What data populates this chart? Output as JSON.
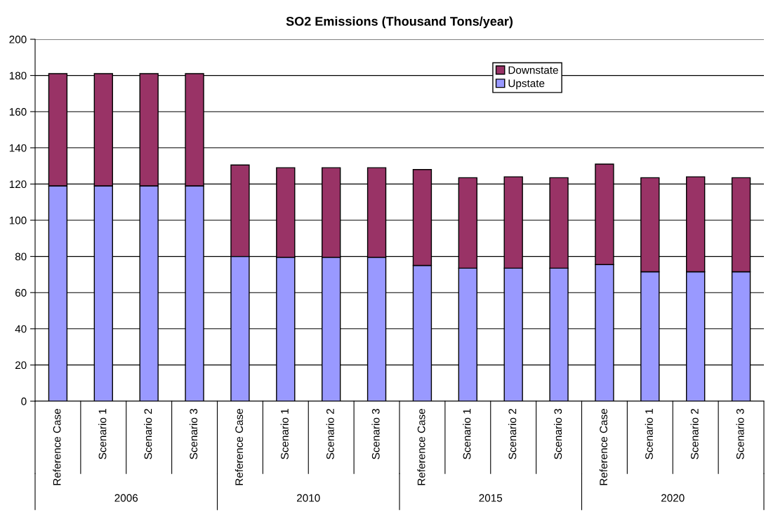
{
  "chart_data": {
    "type": "bar",
    "title": "SO2 Emissions (Thousand Tons/year)",
    "categories": [
      "Reference Case",
      "Scenario 1",
      "Scenario 2",
      "Scenario 3",
      "Reference Case",
      "Scenario 1",
      "Scenario 2",
      "Scenario 3",
      "Reference Case",
      "Scenario 1",
      "Scenario 2",
      "Scenario 3",
      "Reference Case",
      "Scenario 1",
      "Scenario 2",
      "Scenario 3"
    ],
    "annotations": [
      "2006",
      "2010",
      "2015",
      "2020"
    ],
    "stacked": true,
    "series": [
      {
        "name": "Upstate",
        "color": "#9999ff",
        "values": [
          119,
          119,
          119,
          119,
          80,
          79.5,
          79.5,
          79.5,
          75,
          73.5,
          73.5,
          73.5,
          75.5,
          71.5,
          71.5,
          71.5
        ]
      },
      {
        "name": "Downstate",
        "color": "#993366",
        "values": [
          62,
          62,
          62,
          62,
          50.5,
          49.5,
          49.5,
          49.5,
          53,
          50,
          50.5,
          50,
          55.5,
          52,
          52.5,
          52
        ]
      }
    ],
    "ylim": [
      0,
      200
    ],
    "yticks": [
      0,
      20,
      40,
      60,
      80,
      100,
      120,
      140,
      160,
      180,
      200
    ],
    "grid": "y",
    "legend": "top right"
  }
}
